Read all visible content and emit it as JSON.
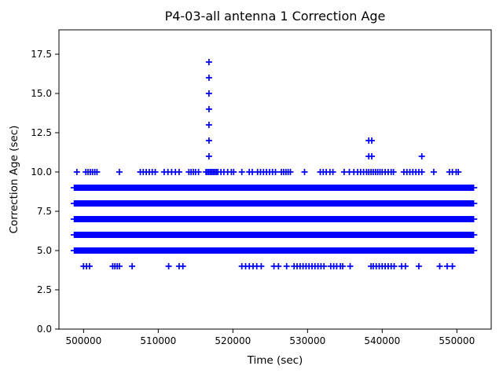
{
  "chart_data": {
    "type": "scatter",
    "title": "P4-03-all antenna 1 Correction Age",
    "xlabel": "Time (sec)",
    "ylabel": "Correction Age (sec)",
    "marker": "plus",
    "marker_color": "#0000ff",
    "axis_color": "#000000",
    "background": "#ffffff",
    "grid": false,
    "legend": null,
    "xlim": [
      496700,
      554600
    ],
    "ylim": [
      0,
      19.05
    ],
    "xticks": [
      500000,
      510000,
      520000,
      530000,
      540000,
      550000
    ],
    "xtick_labels": [
      "500000",
      "510000",
      "520000",
      "530000",
      "540000",
      "550000"
    ],
    "yticks": [
      0,
      2.5,
      5,
      7.5,
      10,
      12.5,
      15,
      17.5
    ],
    "ytick_labels": [
      "0.0",
      "2.5",
      "5.0",
      "7.5",
      "10.0",
      "12.5",
      "15.0",
      "17.5"
    ],
    "dense_bands": [
      {
        "y": 9,
        "x_start": 498800,
        "x_end": 552200
      },
      {
        "y": 8,
        "x_start": 498800,
        "x_end": 552200
      },
      {
        "y": 7,
        "x_start": 498800,
        "x_end": 552200
      },
      {
        "y": 6,
        "x_start": 498800,
        "x_end": 552200
      },
      {
        "y": 5,
        "x_start": 498800,
        "x_end": 552200
      }
    ],
    "sparse_series": [
      {
        "y": 17,
        "x": [
          516800
        ]
      },
      {
        "y": 16,
        "x": [
          516800
        ]
      },
      {
        "y": 15,
        "x": [
          516800
        ]
      },
      {
        "y": 14,
        "x": [
          516800
        ]
      },
      {
        "y": 13,
        "x": [
          516800
        ]
      },
      {
        "y": 12,
        "x": [
          516800,
          538200,
          538600
        ]
      },
      {
        "y": 11,
        "x": [
          516800,
          538200,
          538600,
          545300
        ]
      },
      {
        "y": 10,
        "x": [
          499100,
          500300,
          500600,
          500900,
          501200,
          501500,
          501800,
          504800,
          507600,
          508000,
          508400,
          508800,
          509200,
          509600,
          510800,
          511300,
          511800,
          512300,
          512800,
          514100,
          514400,
          514700,
          515000,
          515400,
          516400,
          516600,
          516800,
          517000,
          517200,
          517400,
          517600,
          517800,
          518000,
          518400,
          518800,
          519300,
          519800,
          520100,
          521200,
          522200,
          522600,
          523300,
          523700,
          524100,
          524500,
          524900,
          525300,
          525700,
          526500,
          526800,
          527100,
          527400,
          527700,
          529600,
          531700,
          532100,
          532500,
          533000,
          533400,
          534900,
          535600,
          536200,
          536700,
          537100,
          537500,
          537900,
          538200,
          538500,
          538800,
          539100,
          539400,
          539700,
          540000,
          540400,
          540800,
          541200,
          541500,
          542900,
          543300,
          543700,
          544100,
          544500,
          544900,
          545300,
          546900,
          549000,
          549400,
          549900,
          550200
        ]
      },
      {
        "y": 4,
        "x": [
          500000,
          500400,
          500800,
          503900,
          504200,
          504500,
          504800,
          506500,
          511400,
          512800,
          513300,
          521200,
          521700,
          522200,
          522700,
          523200,
          523800,
          525500,
          526100,
          527200,
          528200,
          528600,
          529000,
          529400,
          529800,
          530200,
          530600,
          531000,
          531400,
          531800,
          532200,
          533100,
          533500,
          533900,
          534400,
          534700,
          535700,
          538500,
          538800,
          539200,
          539600,
          540000,
          540400,
          540800,
          541200,
          541600,
          542600,
          543100,
          544900,
          547700,
          548700,
          549400
        ]
      }
    ]
  }
}
